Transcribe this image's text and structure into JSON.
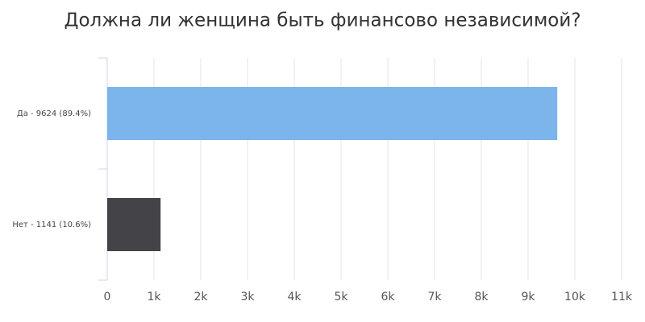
{
  "chart_data": {
    "type": "bar",
    "title": "Должна ли женщина быть финансово независимой?",
    "categories": [
      "Да - 9624 (89.4%)",
      "Нет - 1141 (10.6%)"
    ],
    "values": [
      9624,
      1141
    ],
    "colors": [
      "#7cb5ec",
      "#434348"
    ],
    "xlim": [
      0,
      11000
    ],
    "xticks": [
      0,
      {
        "value": 1000,
        "label": "1k"
      },
      {
        "value": 2000,
        "label": "2k"
      },
      {
        "value": 3000,
        "label": "3k"
      },
      {
        "value": 4000,
        "label": "4k"
      },
      {
        "value": 5000,
        "label": "5k"
      },
      {
        "value": 6000,
        "label": "6k"
      },
      {
        "value": 7000,
        "label": "7k"
      },
      {
        "value": 8000,
        "label": "8k"
      },
      {
        "value": 9000,
        "label": "9k"
      },
      {
        "value": 10000,
        "label": "10k"
      },
      {
        "value": 11000,
        "label": "11k"
      }
    ],
    "grid": true
  }
}
